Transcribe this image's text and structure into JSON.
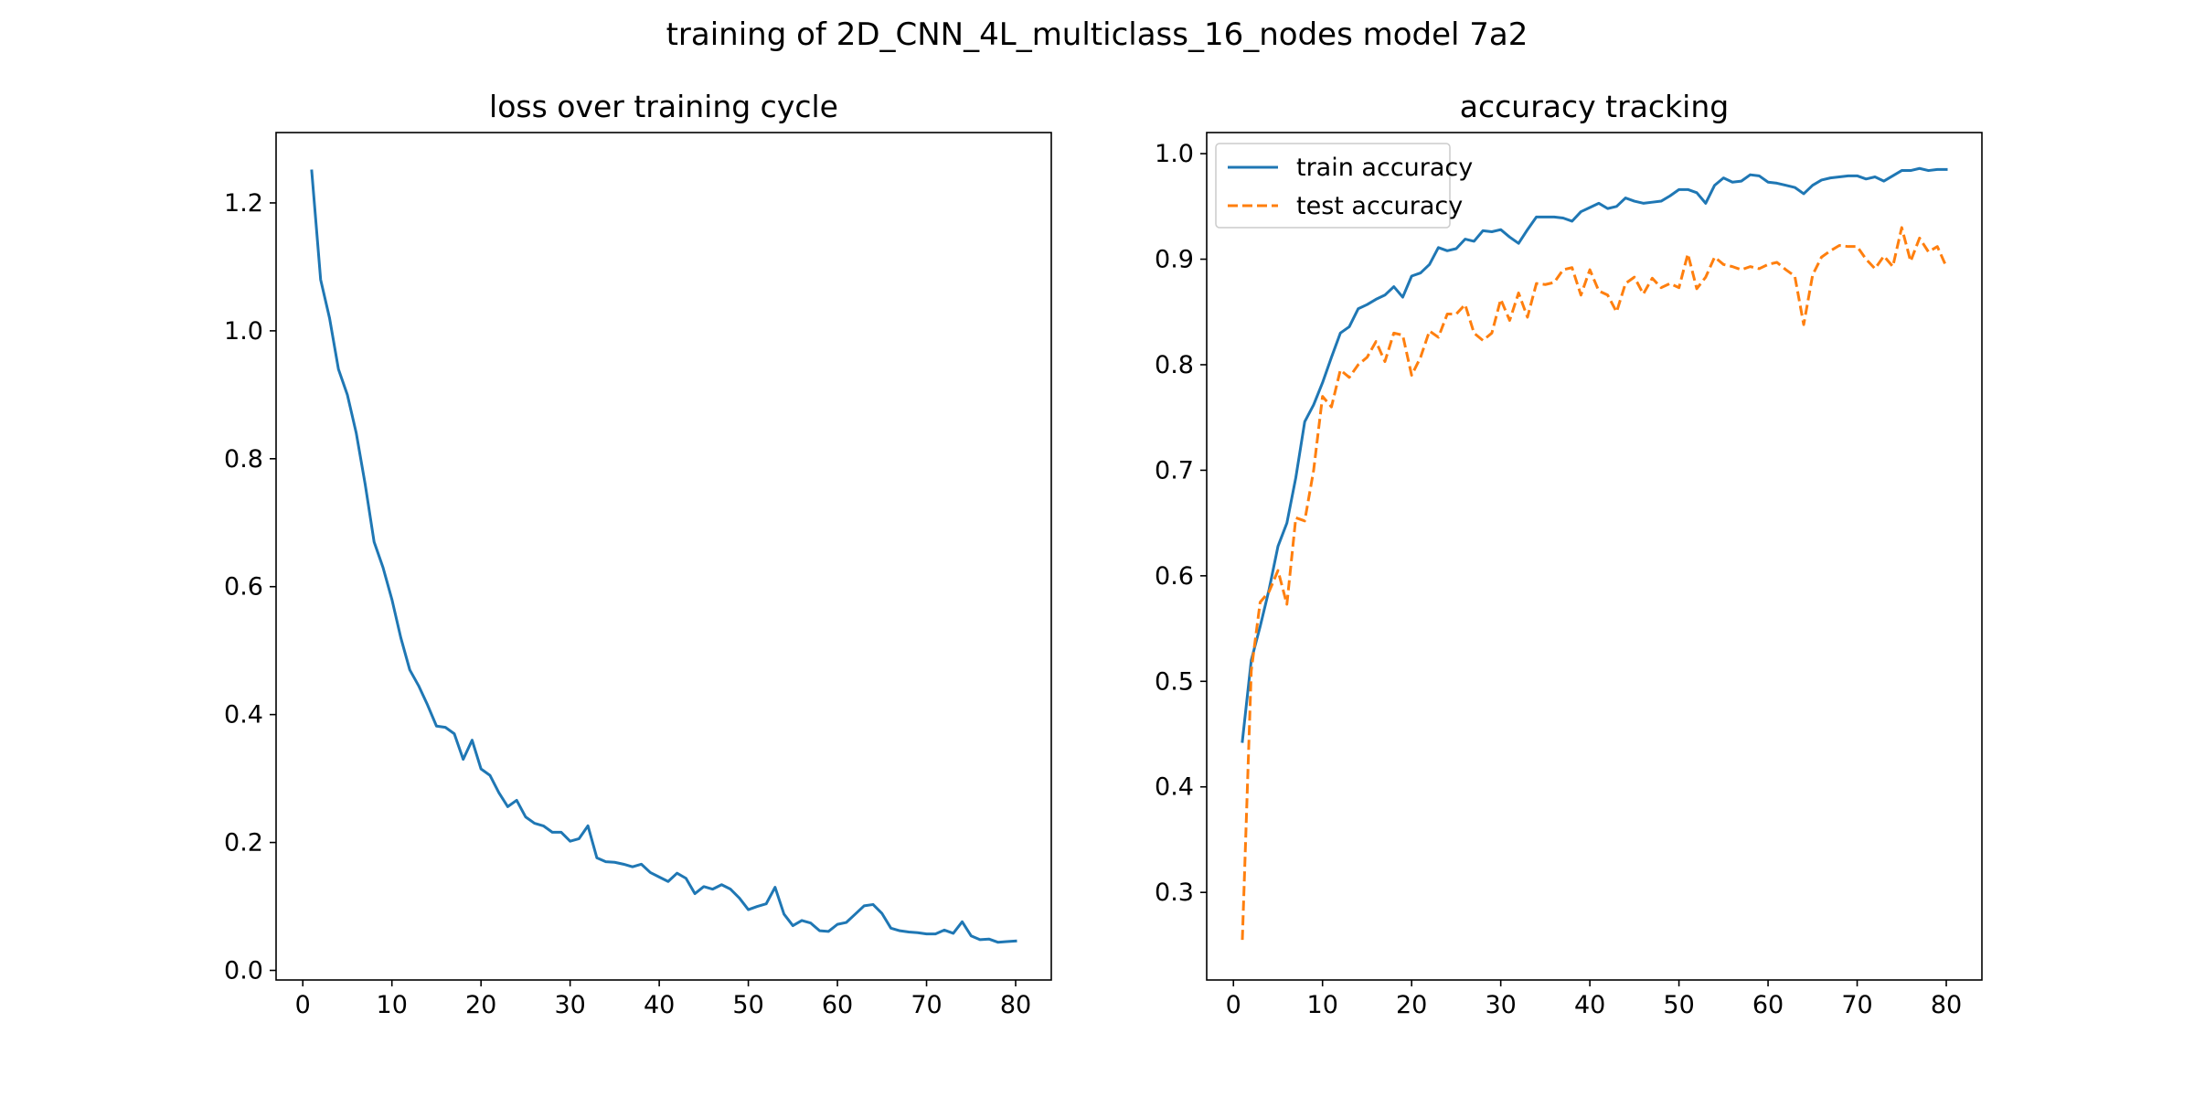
{
  "figure": {
    "suptitle": "training of 2D_CNN_4L_multiclass_16_nodes model 7a2"
  },
  "chart_data": [
    {
      "type": "line",
      "title": "loss over training cycle",
      "xlabel": "",
      "ylabel": "",
      "xlim": [
        -3,
        84
      ],
      "ylim": [
        -0.015,
        1.31
      ],
      "xticks": [
        0,
        10,
        20,
        30,
        40,
        50,
        60,
        70,
        80
      ],
      "yticks": [
        0.0,
        0.2,
        0.4,
        0.6,
        0.8,
        1.0,
        1.2
      ],
      "tick_decimals": 1,
      "grid": false,
      "legend": null,
      "series": [
        {
          "color": "#1f77b4",
          "dash": "solid",
          "x": [
            1,
            2,
            3,
            4,
            5,
            6,
            7,
            8,
            9,
            10,
            11,
            12,
            13,
            14,
            15,
            16,
            17,
            18,
            19,
            20,
            21,
            22,
            23,
            24,
            25,
            26,
            27,
            28,
            29,
            30,
            31,
            32,
            33,
            34,
            35,
            36,
            37,
            38,
            39,
            40,
            41,
            42,
            43,
            44,
            45,
            46,
            47,
            48,
            49,
            50,
            51,
            52,
            53,
            54,
            55,
            56,
            57,
            58,
            59,
            60,
            61,
            62,
            63,
            64,
            65,
            66,
            67,
            68,
            69,
            70,
            71,
            72,
            73,
            74,
            75,
            76,
            77,
            78,
            79,
            80
          ],
          "y": [
            1.25,
            1.08,
            1.02,
            0.94,
            0.9,
            0.84,
            0.76,
            0.67,
            0.63,
            0.58,
            0.52,
            0.47,
            0.445,
            0.415,
            0.382,
            0.38,
            0.37,
            0.33,
            0.36,
            0.315,
            0.305,
            0.278,
            0.256,
            0.266,
            0.24,
            0.23,
            0.226,
            0.216,
            0.216,
            0.202,
            0.206,
            0.226,
            0.176,
            0.17,
            0.169,
            0.166,
            0.162,
            0.166,
            0.153,
            0.146,
            0.139,
            0.152,
            0.144,
            0.12,
            0.131,
            0.127,
            0.134,
            0.127,
            0.113,
            0.095,
            0.1,
            0.104,
            0.13,
            0.088,
            0.07,
            0.078,
            0.074,
            0.062,
            0.061,
            0.072,
            0.075,
            0.088,
            0.101,
            0.103,
            0.089,
            0.066,
            0.062,
            0.06,
            0.059,
            0.057,
            0.057,
            0.063,
            0.058,
            0.076,
            0.054,
            0.048,
            0.049,
            0.044,
            0.045,
            0.046
          ]
        }
      ]
    },
    {
      "type": "line",
      "title": "accuracy tracking",
      "xlabel": "",
      "ylabel": "",
      "xlim": [
        -3,
        84
      ],
      "ylim": [
        0.217,
        1.02
      ],
      "xticks": [
        0,
        10,
        20,
        30,
        40,
        50,
        60,
        70,
        80
      ],
      "yticks": [
        0.3,
        0.4,
        0.5,
        0.6,
        0.7,
        0.8,
        0.9,
        1.0
      ],
      "tick_decimals": 1,
      "grid": false,
      "legend": "upper-left",
      "series": [
        {
          "name": "train accuracy",
          "color": "#1f77b4",
          "dash": "solid",
          "x": [
            1,
            2,
            3,
            4,
            5,
            6,
            7,
            8,
            9,
            10,
            11,
            12,
            13,
            14,
            15,
            16,
            17,
            18,
            19,
            20,
            21,
            22,
            23,
            24,
            25,
            26,
            27,
            28,
            29,
            30,
            31,
            32,
            33,
            34,
            35,
            36,
            37,
            38,
            39,
            40,
            41,
            42,
            43,
            44,
            45,
            46,
            47,
            48,
            49,
            50,
            51,
            52,
            53,
            54,
            55,
            56,
            57,
            58,
            59,
            60,
            61,
            62,
            63,
            64,
            65,
            66,
            67,
            68,
            69,
            70,
            71,
            72,
            73,
            74,
            75,
            76,
            77,
            78,
            79,
            80
          ],
          "y": [
            0.443,
            0.52,
            0.552,
            0.587,
            0.628,
            0.65,
            0.693,
            0.746,
            0.762,
            0.783,
            0.807,
            0.83,
            0.836,
            0.853,
            0.857,
            0.862,
            0.866,
            0.874,
            0.864,
            0.884,
            0.887,
            0.895,
            0.911,
            0.908,
            0.91,
            0.919,
            0.917,
            0.927,
            0.926,
            0.928,
            0.921,
            0.915,
            0.928,
            0.94,
            0.94,
            0.94,
            0.939,
            0.936,
            0.945,
            0.949,
            0.953,
            0.948,
            0.95,
            0.958,
            0.955,
            0.953,
            0.954,
            0.955,
            0.96,
            0.966,
            0.966,
            0.963,
            0.953,
            0.97,
            0.977,
            0.973,
            0.974,
            0.98,
            0.979,
            0.973,
            0.972,
            0.97,
            0.968,
            0.962,
            0.97,
            0.975,
            0.977,
            0.978,
            0.979,
            0.979,
            0.976,
            0.978,
            0.974,
            0.979,
            0.984,
            0.984,
            0.986,
            0.984,
            0.985,
            0.985
          ]
        },
        {
          "name": "test accuracy",
          "color": "#ff7f0e",
          "dash": "dashed",
          "x": [
            1,
            2,
            3,
            4,
            5,
            6,
            7,
            8,
            9,
            10,
            11,
            12,
            13,
            14,
            15,
            16,
            17,
            18,
            19,
            20,
            21,
            22,
            23,
            24,
            25,
            26,
            27,
            28,
            29,
            30,
            31,
            32,
            33,
            34,
            35,
            36,
            37,
            38,
            39,
            40,
            41,
            42,
            43,
            44,
            45,
            46,
            47,
            48,
            49,
            50,
            51,
            52,
            53,
            54,
            55,
            56,
            57,
            58,
            59,
            60,
            61,
            62,
            63,
            64,
            65,
            66,
            67,
            68,
            69,
            70,
            71,
            72,
            73,
            74,
            75,
            76,
            77,
            78,
            79,
            80
          ],
          "y": [
            0.255,
            0.51,
            0.575,
            0.585,
            0.605,
            0.573,
            0.655,
            0.652,
            0.7,
            0.77,
            0.76,
            0.795,
            0.788,
            0.8,
            0.807,
            0.822,
            0.803,
            0.83,
            0.828,
            0.79,
            0.807,
            0.832,
            0.826,
            0.848,
            0.848,
            0.857,
            0.83,
            0.823,
            0.83,
            0.862,
            0.842,
            0.868,
            0.845,
            0.877,
            0.876,
            0.878,
            0.89,
            0.892,
            0.866,
            0.89,
            0.87,
            0.866,
            0.85,
            0.877,
            0.883,
            0.867,
            0.882,
            0.873,
            0.877,
            0.873,
            0.905,
            0.872,
            0.883,
            0.902,
            0.895,
            0.893,
            0.89,
            0.893,
            0.891,
            0.895,
            0.897,
            0.89,
            0.884,
            0.838,
            0.885,
            0.902,
            0.908,
            0.913,
            0.912,
            0.912,
            0.9,
            0.891,
            0.903,
            0.893,
            0.93,
            0.898,
            0.92,
            0.907,
            0.912,
            0.893
          ]
        }
      ]
    }
  ]
}
